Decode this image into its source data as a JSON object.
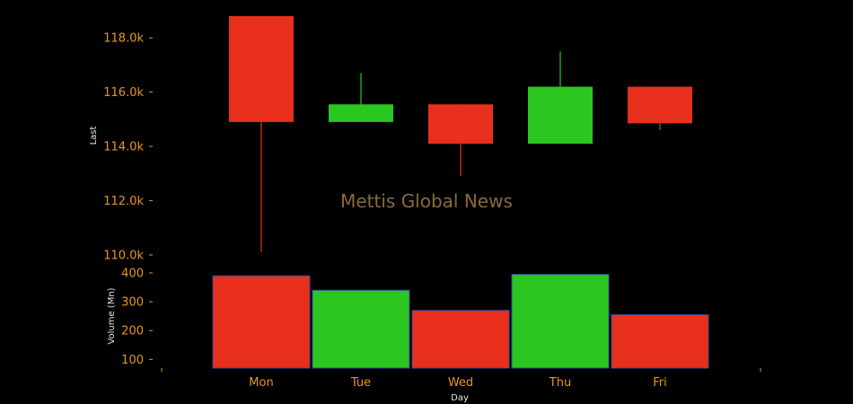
{
  "chart_data": {
    "type": "candlestick",
    "watermark": "Mettis Global News",
    "categories": [
      "Mon",
      "Tue",
      "Wed",
      "Thu",
      "Fri"
    ],
    "price": {
      "ylabel": "Last",
      "ylim": [
        110000,
        118800
      ],
      "ticks": [
        110000,
        112000,
        114000,
        116000,
        118000
      ],
      "tick_labels": [
        "110.0k",
        "112.0k",
        "114.0k",
        "116.0k",
        "118.0k"
      ],
      "candles": [
        {
          "open": 118800,
          "high": 118800,
          "low": 110100,
          "close": 114900
        },
        {
          "open": 114900,
          "high": 116700,
          "low": 114900,
          "close": 115550
        },
        {
          "open": 115550,
          "high": 115550,
          "low": 112900,
          "close": 114100
        },
        {
          "open": 114100,
          "high": 117500,
          "low": 114100,
          "close": 116200
        },
        {
          "open": 116200,
          "high": 116200,
          "low": 114600,
          "close": 114850
        }
      ]
    },
    "volume": {
      "ylabel": "Volume (Mn)",
      "ylim": [
        70,
        400
      ],
      "ticks": [
        100,
        200,
        300,
        400
      ],
      "tick_labels": [
        "100",
        "200",
        "300",
        "400"
      ],
      "values": [
        390,
        340,
        270,
        395,
        255
      ]
    },
    "xlabel": "Day",
    "up_color": "#2cc621",
    "down_color": "#e8301c",
    "tick_color": "#e8961e",
    "grid": false
  }
}
